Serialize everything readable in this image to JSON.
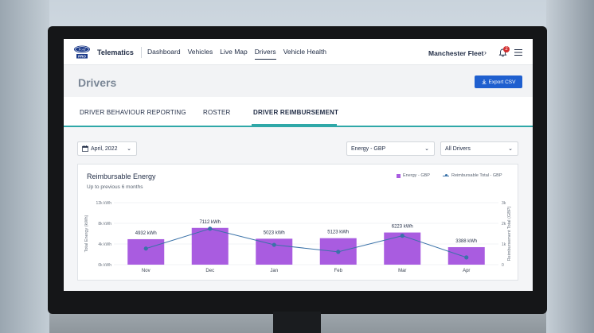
{
  "nav": {
    "brand": "Telematics",
    "links": [
      "Dashboard",
      "Vehicles",
      "Live Map",
      "Drivers",
      "Vehicle Health"
    ],
    "active_index": 3,
    "fleet": "Manchester Fleet",
    "notification_count": "2"
  },
  "header": {
    "title": "Drivers",
    "export_label": "Export CSV"
  },
  "tabs": [
    "DRIVER BEHAVIOUR REPORTING",
    "ROSTER",
    "DRIVER REIMBURSEMENT"
  ],
  "filters": {
    "date": "April, 2022",
    "metric": "Energy - GBP",
    "drivers": "All Drivers"
  },
  "colors": {
    "bar": "#a95ce0",
    "line": "#3a72a8",
    "accent": "#2fa8a8",
    "button": "#1f5fcf"
  },
  "chart_data": {
    "type": "bar",
    "title": "Reimbursable Energy",
    "subtitle": "Up to previous 6 months",
    "categories": [
      "Nov",
      "Dec",
      "Jan",
      "Feb",
      "Mar",
      "Apr"
    ],
    "series": [
      {
        "name": "Energy - GBP",
        "type": "bar",
        "axis": "left",
        "values": [
          4932,
          7112,
          5023,
          5123,
          6223,
          3388
        ],
        "labels": [
          "4932 kWh",
          "7112 kWh",
          "5023 kWh",
          "5123 kWh",
          "6223 kWh",
          "3388 kWh"
        ]
      },
      {
        "name": "Reimbursable Total - GBP",
        "type": "line",
        "axis": "right",
        "values": [
          780,
          1740,
          960,
          620,
          1400,
          350
        ]
      }
    ],
    "ylabel": "Total Energy (kWh)",
    "ylabel_right": "Reimbursement Total (GBP)",
    "yticks": [
      "0k kWh",
      "4k kWh",
      "8k kWh",
      "12k kWh"
    ],
    "yticks_right": [
      "0",
      "1k",
      "2k",
      "3k"
    ],
    "ylim": [
      0,
      12000
    ],
    "ylim_right": [
      0,
      3000
    ],
    "grid": true,
    "legend": "top-right"
  }
}
